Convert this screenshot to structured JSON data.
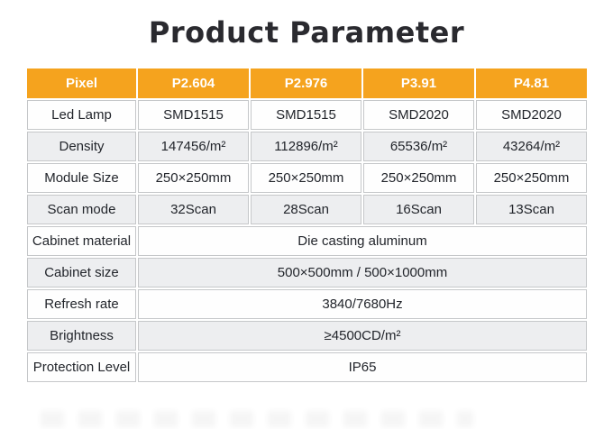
{
  "page": {
    "title": "Product Parameter"
  },
  "colors": {
    "accent_orange": "#f5a31e",
    "header_text": "#ffffff",
    "row_alt_gray": "#edeef0",
    "cell_border": "#c5c7c9",
    "body_text": "#22252b",
    "title_text": "#2a2a2f"
  },
  "table": {
    "header": {
      "label": "Pixel",
      "columns": [
        "P2.604",
        "P2.976",
        "P3.91",
        "P4.81"
      ]
    },
    "rows": [
      {
        "label": "Led Lamp",
        "values": [
          "SMD1515",
          "SMD1515",
          "SMD2020",
          "SMD2020"
        ]
      },
      {
        "label": "Density",
        "values": [
          "147456/m²",
          "112896/m²",
          "65536/m²",
          "43264/m²"
        ]
      },
      {
        "label": "Module Size",
        "values": [
          "250×250mm",
          "250×250mm",
          "250×250mm",
          "250×250mm"
        ]
      },
      {
        "label": "Scan mode",
        "values": [
          "32Scan",
          "28Scan",
          "16Scan",
          "13Scan"
        ]
      },
      {
        "label": "Cabinet material",
        "values": [
          "Die casting aluminum"
        ]
      },
      {
        "label": "Cabinet size",
        "values": [
          "500×500mm / 500×1000mm"
        ]
      },
      {
        "label": "Refresh rate",
        "values": [
          "3840/7680Hz"
        ]
      },
      {
        "label": "Brightness",
        "values": [
          "≥4500CD/m²"
        ]
      },
      {
        "label": "Protection Level",
        "values": [
          "IP65"
        ]
      }
    ]
  }
}
